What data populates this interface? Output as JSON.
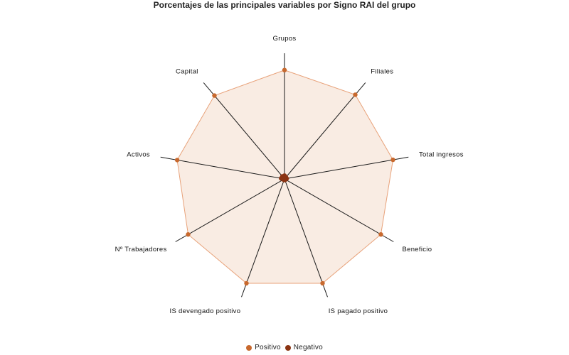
{
  "chart_data": {
    "type": "radar",
    "title": "Porcentajes de las principales variables por Signo RAI del grupo",
    "axes": [
      "Grupos",
      "Filiales",
      "Total ingresos",
      "Beneficio",
      "IS pagado positivo",
      "IS devengado positivo",
      "Nº Trabajadores",
      "Activos",
      "Capital"
    ],
    "range": [
      0,
      100
    ],
    "grid": false,
    "legend_position": "bottom",
    "series": [
      {
        "name": "Positivo",
        "color": "#c8692e",
        "values": [
          97,
          98,
          98,
          99,
          99,
          99,
          99,
          97,
          97
        ]
      },
      {
        "name": "Negativo",
        "color": "#8b3312",
        "values": [
          3,
          2,
          2,
          1,
          1,
          1,
          1,
          3,
          3
        ]
      }
    ]
  },
  "colors": {
    "fill": "#f9ece3",
    "outline": "#e8a27a",
    "axis": "#1a1a1a"
  }
}
